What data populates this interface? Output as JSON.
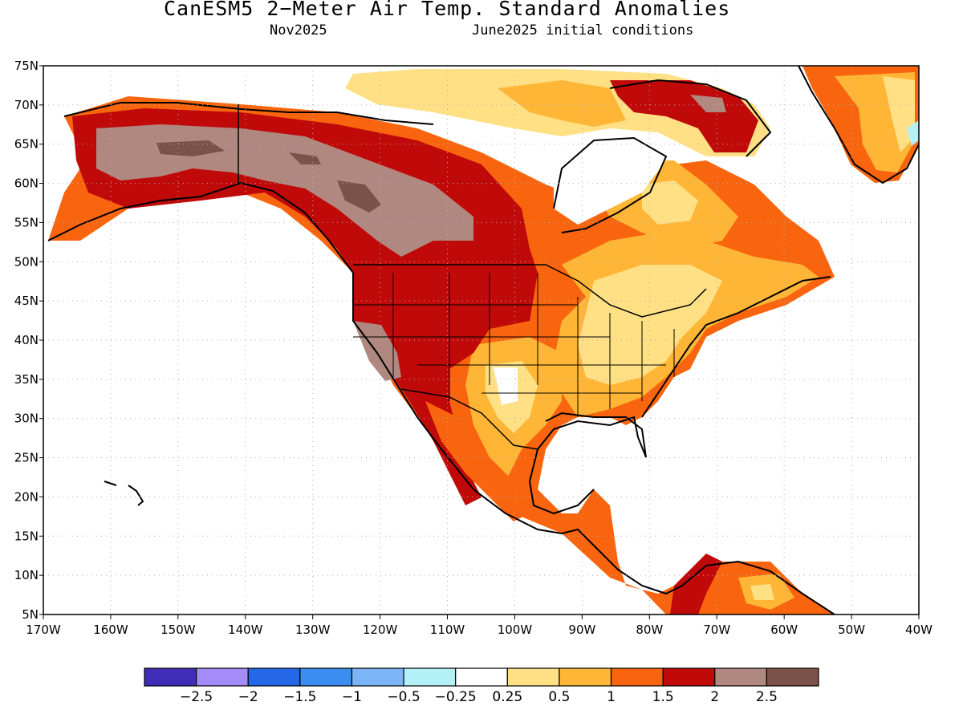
{
  "header": {
    "title": "CanESM5 2−Meter Air Temp. Standard Anomalies",
    "valid_month": "Nov2025",
    "init": "June2025 initial conditions"
  },
  "map": {
    "lon_labels": [
      "170W",
      "160W",
      "150W",
      "140W",
      "130W",
      "120W",
      "110W",
      "100W",
      "90W",
      "80W",
      "70W",
      "60W",
      "50W",
      "40W"
    ],
    "lat_labels": [
      "75N",
      "70N",
      "65N",
      "60N",
      "55N",
      "50N",
      "45N",
      "40N",
      "35N",
      "30N",
      "25N",
      "20N",
      "15N",
      "10N",
      "5N"
    ]
  },
  "legend": {
    "colors": [
      "#3f2db8",
      "#a48cf8",
      "#2468e8",
      "#3b8ef0",
      "#7cb4f8",
      "#b4f0f8",
      "#ffffff",
      "#ffe084",
      "#ffb636",
      "#f8650e",
      "#c00a0a",
      "#b08880",
      "#7a5248"
    ],
    "labels": [
      "−2.5",
      "−2",
      "−1.5",
      "−1",
      "−0.5",
      "−0.25",
      "0.25",
      "0.5",
      "1",
      "1.5",
      "2",
      "2.5"
    ]
  }
}
